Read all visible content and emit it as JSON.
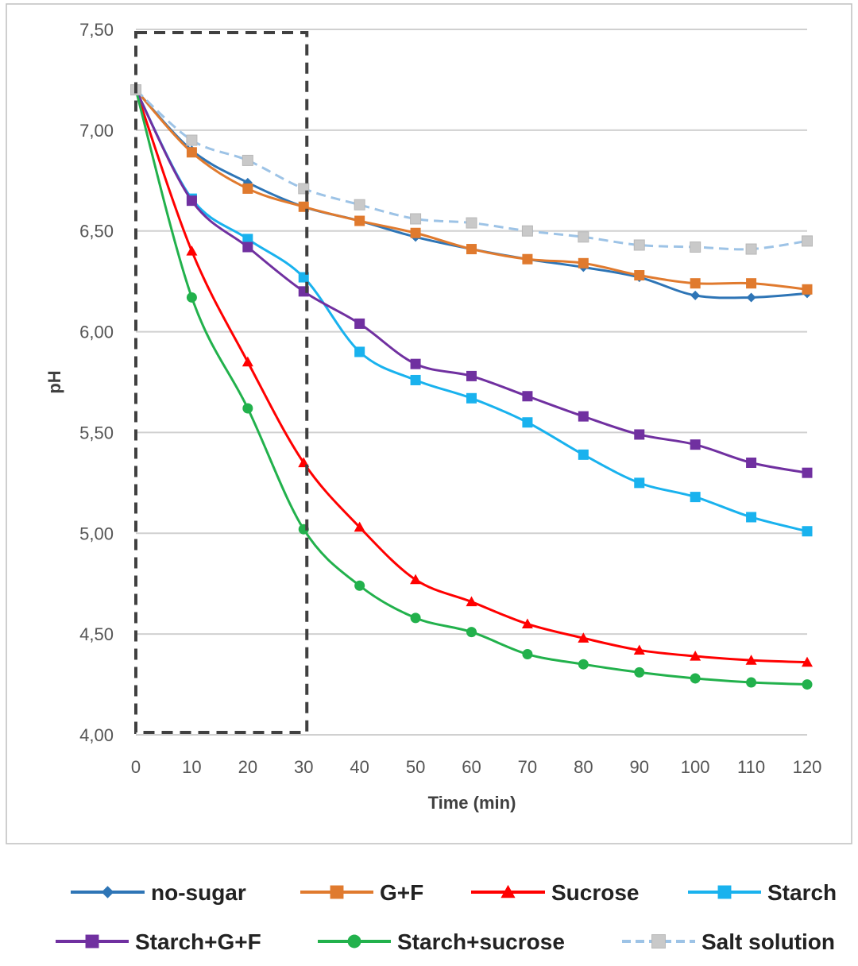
{
  "chart_data": {
    "type": "line",
    "title": "",
    "xlabel": "Time (min)",
    "ylabel": "pH",
    "x": [
      0,
      10,
      20,
      30,
      40,
      50,
      60,
      70,
      80,
      90,
      100,
      110,
      120
    ],
    "x_tick_labels": [
      "0",
      "10",
      "20",
      "30",
      "40",
      "50",
      "60",
      "70",
      "80",
      "90",
      "100",
      "110",
      "120"
    ],
    "ylim": [
      4.0,
      7.5
    ],
    "y_ticks": [
      4.0,
      4.5,
      5.0,
      5.5,
      6.0,
      6.5,
      7.0,
      7.5
    ],
    "y_tick_labels": [
      "4,00",
      "4,50",
      "5,00",
      "5,50",
      "6,00",
      "6,50",
      "7,00",
      "7,50"
    ],
    "grid": "horizontal",
    "legend_position": "bottom",
    "annotation": {
      "type": "dashed-box",
      "x_range": [
        0,
        30
      ],
      "y_range": [
        4.0,
        7.5
      ]
    },
    "series": [
      {
        "name": "no-sugar",
        "color": "#2E75B6",
        "marker": "diamond",
        "dashed": false,
        "values": [
          7.2,
          6.9,
          6.74,
          6.62,
          6.55,
          6.47,
          6.41,
          6.36,
          6.32,
          6.27,
          6.18,
          6.17,
          6.19
        ]
      },
      {
        "name": "G+F",
        "color": "#E07A2E",
        "marker": "square",
        "dashed": false,
        "values": [
          7.2,
          6.89,
          6.71,
          6.62,
          6.55,
          6.49,
          6.41,
          6.36,
          6.34,
          6.28,
          6.24,
          6.24,
          6.21
        ]
      },
      {
        "name": "Sucrose",
        "color": "#FF0000",
        "marker": "triangle",
        "dashed": false,
        "values": [
          7.2,
          6.4,
          5.85,
          5.35,
          5.03,
          4.77,
          4.66,
          4.55,
          4.48,
          4.42,
          4.39,
          4.37,
          4.36
        ]
      },
      {
        "name": "Starch",
        "color": "#19B2EE",
        "marker": "square",
        "dashed": false,
        "values": [
          7.2,
          6.66,
          6.46,
          6.27,
          5.9,
          5.76,
          5.67,
          5.55,
          5.39,
          5.25,
          5.18,
          5.08,
          5.01
        ]
      },
      {
        "name": "Starch+G+F",
        "color": "#7030A0",
        "marker": "square",
        "dashed": false,
        "values": [
          7.2,
          6.65,
          6.42,
          6.2,
          6.04,
          5.84,
          5.78,
          5.68,
          5.58,
          5.49,
          5.44,
          5.35,
          5.3
        ]
      },
      {
        "name": "Starch+sucrose",
        "color": "#22B14C",
        "marker": "circle",
        "dashed": false,
        "values": [
          7.2,
          6.17,
          5.62,
          5.02,
          4.74,
          4.58,
          4.51,
          4.4,
          4.35,
          4.31,
          4.28,
          4.26,
          4.25
        ]
      },
      {
        "name": "Salt solution",
        "color": "#9DC3E6",
        "marker": "square-light",
        "dashed": true,
        "values": [
          7.2,
          6.95,
          6.85,
          6.71,
          6.63,
          6.56,
          6.54,
          6.5,
          6.47,
          6.43,
          6.42,
          6.41,
          6.45
        ]
      }
    ]
  }
}
